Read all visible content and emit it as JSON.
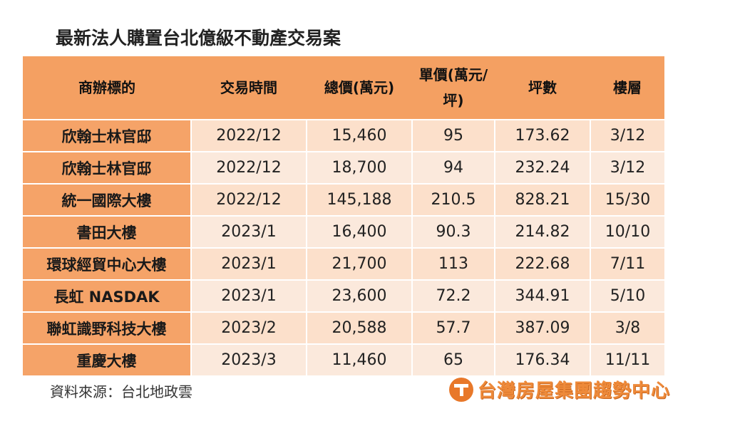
{
  "title": "最新法人購置台北億級不動產交易案",
  "table": {
    "headers": [
      "商辦標的",
      "交易時間",
      "總價(萬元)",
      "單價(萬元/坪)",
      "坪數",
      "樓層"
    ],
    "rows": [
      [
        "欣翰士林官邸",
        "2022/12",
        "15,460",
        "95",
        "173.62",
        "3/12"
      ],
      [
        "欣翰士林官邸",
        "2022/12",
        "18,700",
        "94",
        "232.24",
        "3/12"
      ],
      [
        "統一國際大樓",
        "2022/12",
        "145,188",
        "210.5",
        "828.21",
        "15/30"
      ],
      [
        "書田大樓",
        "2023/1",
        "16,400",
        "90.3",
        "214.82",
        "10/10"
      ],
      [
        "環球經貿中心大樓",
        "2023/1",
        "21,700",
        "113",
        "222.68",
        "7/11"
      ],
      [
        "長虹 NASDAK",
        "2023/1",
        "23,600",
        "72.2",
        "344.91",
        "5/10"
      ],
      [
        "聯虹識野科技大樓",
        "2023/2",
        "20,588",
        "57.7",
        "387.09",
        "3/8"
      ],
      [
        "重慶大樓",
        "2023/3",
        "11,460",
        "65",
        "176.34",
        "11/11"
      ]
    ]
  },
  "source": "資料來源：台北地政雲",
  "logo": {
    "text": "台灣房屋集團趨勢中心",
    "icon": "taiwan-realty-logo-icon"
  },
  "colors": {
    "header_bg": "#f4a062",
    "name_col_bg": "#f5a368",
    "row_bg": "#fce0cb",
    "logo": "#ee8a3a"
  }
}
